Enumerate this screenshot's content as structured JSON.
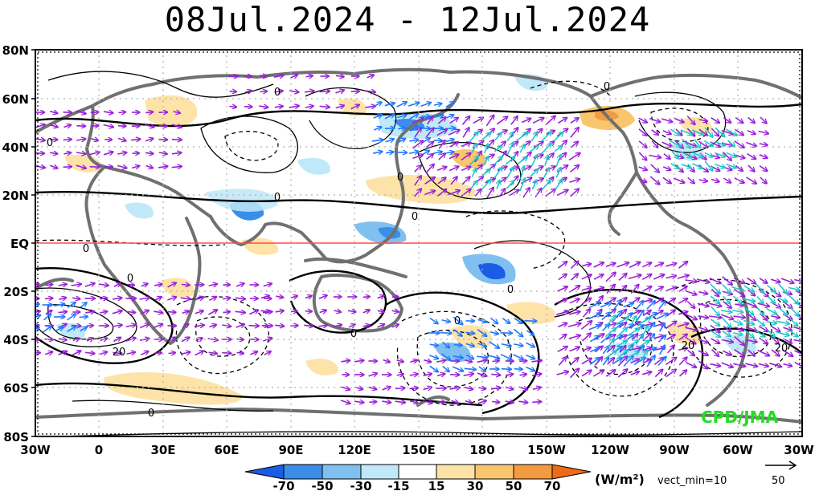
{
  "title": "08Jul.2024 - 12Jul.2024",
  "lat_labels": [
    "80N",
    "60N",
    "40N",
    "20N",
    "EQ",
    "20S",
    "40S",
    "60S",
    "80S"
  ],
  "lon_labels": [
    "30W",
    "0",
    "30E",
    "60E",
    "90E",
    "120E",
    "150E",
    "180",
    "150W",
    "120W",
    "90W",
    "60W",
    "30W"
  ],
  "contour_labels": [
    "0",
    "0",
    "0",
    "0",
    "0",
    "0",
    "0",
    "0",
    "0",
    "0",
    "20",
    "20",
    "0",
    "20",
    "0"
  ],
  "colorbar": {
    "labels": [
      "-70",
      "-50",
      "-30",
      "-15",
      "15",
      "30",
      "50",
      "70"
    ],
    "colors": [
      "#1a5ce6",
      "#3a8ee8",
      "#7fc0f0",
      "#bfe8f8",
      "#ffffff",
      "#fde3a8",
      "#f9c66e",
      "#f49a40",
      "#ee6a18"
    ],
    "units": "(W/m²)"
  },
  "vector_min": "vect_min=10",
  "reference_vector": "50",
  "credit": "CPD/JMA",
  "colors": {
    "equator_line": "#ff4d4d",
    "coastline": "#707070",
    "vector_main": "#9a1fd8",
    "vector_strong": "#1e78ff",
    "vector_strongest": "#20c8c8",
    "credit": "#22dd22"
  }
}
